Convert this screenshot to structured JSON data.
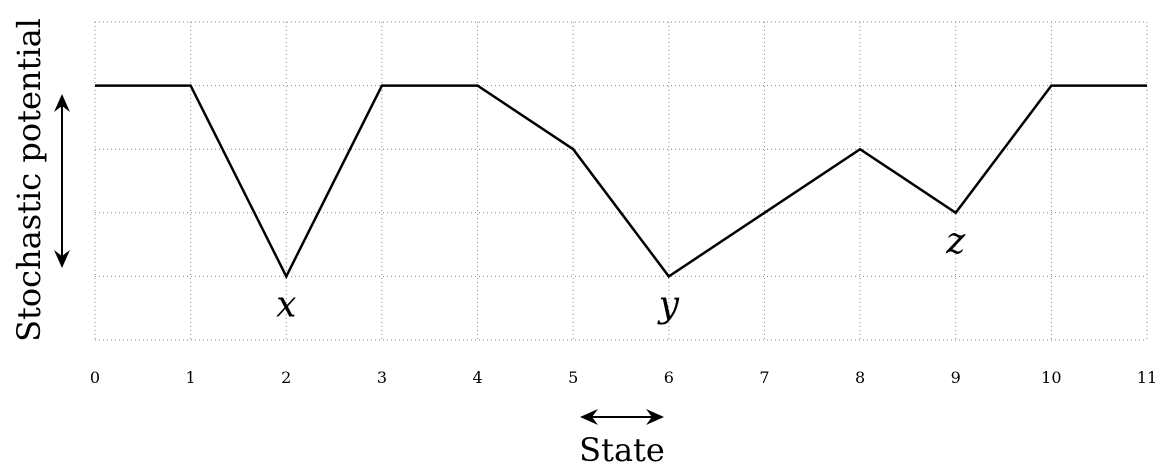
{
  "chart_data": {
    "type": "line",
    "title": "",
    "xlabel": "State",
    "ylabel": "Stochastic potential",
    "x": [
      0,
      1,
      2,
      3,
      4,
      5,
      6,
      7,
      8,
      9,
      10,
      11
    ],
    "series": [
      {
        "values": [
          3,
          3,
          0,
          3,
          3,
          2,
          0,
          1,
          2,
          1,
          3,
          3
        ]
      }
    ],
    "xlim": [
      0,
      11
    ],
    "ylim": [
      -1,
      4
    ],
    "xticks": [
      "0",
      "1",
      "2",
      "3",
      "4",
      "5",
      "6",
      "7",
      "8",
      "9",
      "10",
      "11"
    ],
    "yticks_shown": false,
    "grid": true,
    "grid_style": "dotted",
    "annotations": [
      {
        "text": "x",
        "x": 2,
        "y": 0
      },
      {
        "text": "y",
        "x": 6,
        "y": 0
      },
      {
        "text": "z",
        "x": 9,
        "y": 1
      }
    ],
    "arrows": {
      "vertical_double_arrow": true,
      "horizontal_double_arrow": true
    },
    "colors": {
      "line": "#000000",
      "grid": "#888888"
    }
  }
}
